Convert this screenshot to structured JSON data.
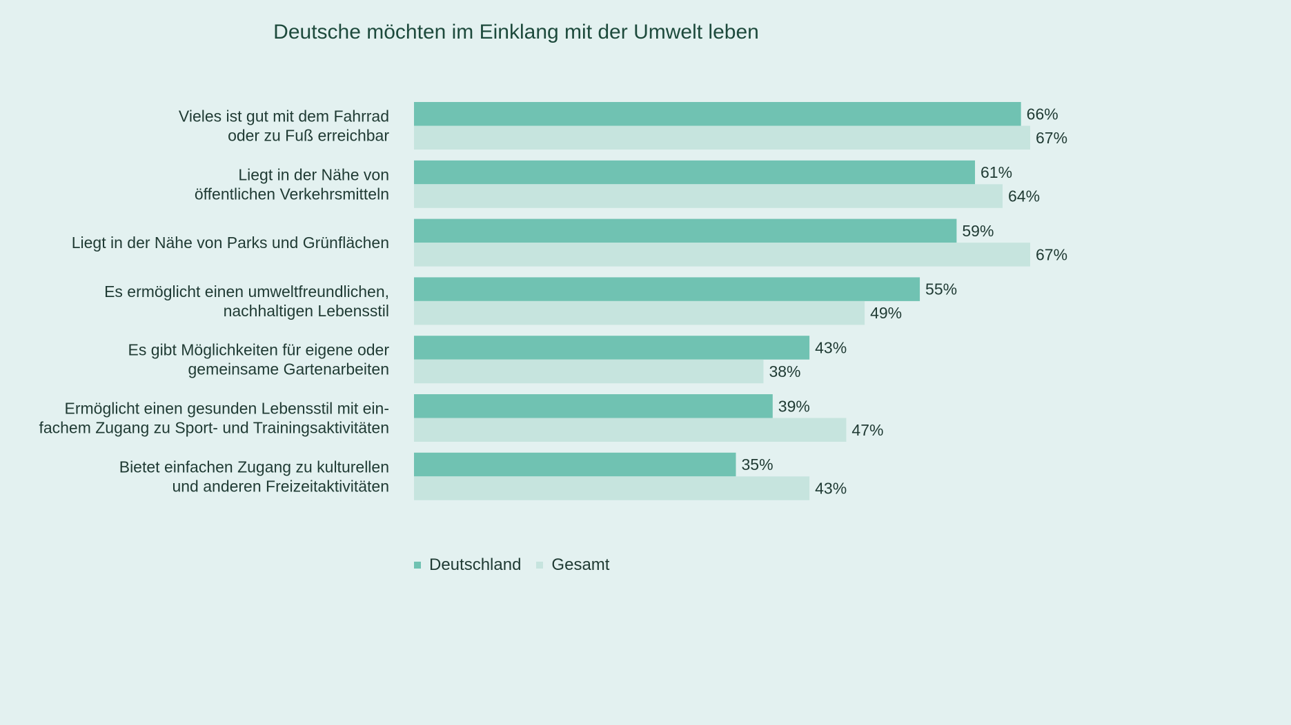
{
  "colors": {
    "background": "#e3f1f0",
    "Deutschland": "#70c2b2",
    "Gesamt": "#c6e4de"
  },
  "chart_data": {
    "type": "bar",
    "orientation": "horizontal",
    "title": "Deutsche möchten im Einklang mit der Umwelt leben",
    "categories": [
      [
        "Vieles ist gut mit dem Fahrrad",
        "oder zu Fuß erreichbar"
      ],
      [
        "Liegt in der Nähe von",
        "öffentlichen Verkehrsmitteln"
      ],
      [
        "Liegt in der Nähe von Parks und Grünflächen"
      ],
      [
        "Es ermöglicht einen umweltfreundlichen,",
        "nachhaltigen Lebensstil"
      ],
      [
        "Es gibt Möglichkeiten für eigene oder",
        "gemeinsame Gartenarbeiten"
      ],
      [
        "Ermöglicht einen gesunden Lebensstil mit ein-",
        "fachem Zugang zu Sport- und Trainingsaktivitäten"
      ],
      [
        "Bietet einfachen Zugang zu kulturellen",
        "und anderen Freizeitaktivitäten"
      ]
    ],
    "series": [
      {
        "name": "Deutschland",
        "values": [
          66,
          61,
          59,
          55,
          43,
          39,
          35
        ]
      },
      {
        "name": "Gesamt",
        "values": [
          67,
          64,
          67,
          49,
          38,
          47,
          43
        ]
      }
    ],
    "value_suffix": "%",
    "xlim": [
      0,
      67
    ],
    "grid": false,
    "legend_position": "bottom"
  }
}
